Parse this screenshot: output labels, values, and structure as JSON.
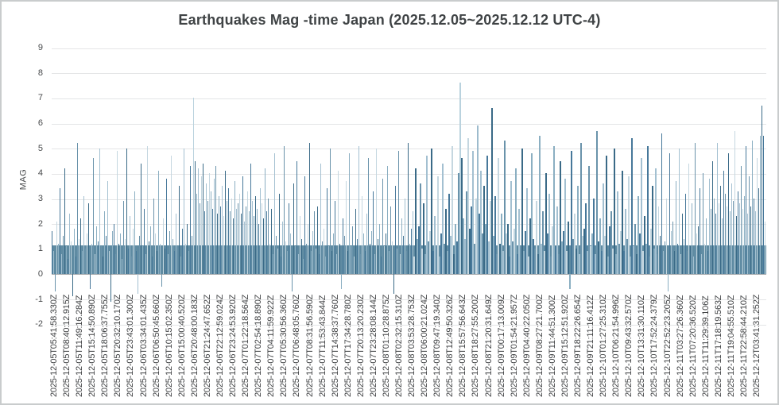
{
  "page": {
    "title": "Earthquakes Mag -time Japan (2025.12.05~2025.12.12 UTC-4)"
  },
  "colors": {
    "background": "#ffffff",
    "frame_border": "#c9cccd",
    "gridline": "#e4e5e6",
    "axis_line": "#a8abad",
    "text": "#47494b",
    "title_text": "#3f4345",
    "bar_dark": "#3a6a87",
    "bar_mid": "#47789a",
    "bar_light": "#a3c0d1",
    "base_band": "#5f8ba2"
  },
  "chart_data": {
    "type": "bar",
    "title": "Earthquakes Mag -time Japan (2025.12.05~2025.12.12 UTC-4)",
    "xlabel": "",
    "ylabel": "MAG",
    "ylim": [
      -2,
      9
    ],
    "yticks": [
      9,
      8,
      7,
      6,
      5,
      4,
      3,
      2,
      1,
      0,
      -1,
      -2
    ],
    "grid": true,
    "legend": false,
    "base_band_mag": 1.15,
    "base_band_color": "#5f8ba2",
    "bar_color_palette": [
      "#47789a",
      "#a3c0d1",
      "#6a93ab",
      "#c5d7e0",
      "#3a6a87",
      "#8bafc2"
    ],
    "bar_color_overrides": {
      "89": "#b9d2de",
      "257": "#b9d2de",
      "268": "#9dbbcd",
      "277": "#3a6a87",
      "447": "#3a6a87",
      "448": "#47789a"
    },
    "x_tick_labels": [
      "2025-12-05T05:41:58.330Z",
      "2025-12-05T08:40:12.915Z",
      "2025-12-05T11:49:16.284Z",
      "2025-12-05T15:14:50.890Z",
      "2025-12-05T18:06:37.755Z",
      "2025-12-05T20:32:10.170Z",
      "2025-12-05T23:43:01.300Z",
      "2025-12-06T03:34:01.435Z",
      "2025-12-06T06:50:45.660Z",
      "2025-12-06T10:15:02.350Z",
      "2025-12-06T15:00:40.520Z",
      "2025-12-06T20:48:00.183Z",
      "2025-12-06T21:24:47.652Z",
      "2025-12-06T22:12:59.024Z",
      "2025-12-06T23:24:53.920Z",
      "2025-12-07T01:22:18.564Z",
      "2025-12-07T02:54:18.890Z",
      "2025-12-07T04:11:59.922Z",
      "2025-12-07T05:30:56.360Z",
      "2025-12-07T06:48:05.760Z",
      "2025-12-07T08:31:56.590Z",
      "2025-12-07T11:53:43.844Z",
      "2025-12-07T14:38:37.760Z",
      "2025-12-07T17:34:28.780Z",
      "2025-12-07T20:13:20.230Z",
      "2025-12-07T23:28:08.144Z",
      "2025-12-08T01:10:28.875Z",
      "2025-12-08T02:32:15.310Z",
      "2025-12-08T03:53:28.753Z",
      "2025-12-08T06:00:21.024Z",
      "2025-12-08T09:47:19.340Z",
      "2025-12-08T12:49:50.326Z",
      "2025-12-08T15:57:56.643Z",
      "2025-12-08T18:27:55.200Z",
      "2025-12-08T21:20:31.649Z",
      "2025-12-09T00:17:13.009Z",
      "2025-12-09T01:54:21.957Z",
      "2025-12-09T04:40:22.050Z",
      "2025-12-09T08:27:21.700Z",
      "2025-12-09T11:44:51.300Z",
      "2025-12-09T15:12:51.920Z",
      "2025-12-09T18:22:26.654Z",
      "2025-12-09T21:11:16.412Z",
      "2025-12-10T01:27:25.310Z",
      "2025-12-10T06:21:54.996Z",
      "2025-12-10T09:43:32.570Z",
      "2025-12-10T13:31:30.110Z",
      "2025-12-10T17:52:24.379Z",
      "2025-12-10T22:52:23.205Z",
      "2025-12-11T03:27:26.360Z",
      "2025-12-11T07:20:36.520Z",
      "2025-12-11T11:29:39.106Z",
      "2025-12-11T17:18:19.563Z",
      "2025-12-11T19:04:55.510Z",
      "2025-12-11T22:58:44.210Z",
      "2025-12-12T03:41:31.252Z"
    ],
    "values": [
      1.7,
      0.9,
      -0.7,
      2.1,
      1.2,
      3.4,
      0.8,
      1.5,
      4.2,
      1.1,
      0.6,
      2.4,
      1.3,
      -0.9,
      1.8,
      0.7,
      5.2,
      1.4,
      2.2,
      0.9,
      3.1,
      1.0,
      1.6,
      2.8,
      -0.6,
      1.2,
      4.6,
      0.8,
      1.9,
      1.3,
      5.0,
      1.1,
      0.7,
      2.5,
      1.5,
      3.7,
      0.9,
      -1.1,
      1.7,
      2.0,
      0.8,
      4.9,
      1.2,
      1.6,
      0.6,
      2.9,
      1.4,
      5.0,
      1.0,
      2.3,
      0.7,
      1.8,
      3.3,
      0.9,
      -0.8,
      1.5,
      4.4,
      1.1,
      2.6,
      0.8,
      5.1,
      1.3,
      1.9,
      0.7,
      3.0,
      1.6,
      0.9,
      4.1,
      1.2,
      -0.5,
      2.2,
      1.0,
      3.8,
      0.8,
      1.7,
      4.7,
      1.4,
      0.9,
      2.4,
      1.1,
      3.5,
      0.7,
      1.8,
      5.0,
      1.2,
      2.0,
      0.9,
      4.3,
      1.5,
      7.0,
      4.5,
      3.2,
      4.2,
      2.8,
      3.9,
      4.4,
      2.5,
      3.6,
      2.9,
      4.0,
      3.3,
      2.6,
      3.8,
      4.3,
      2.4,
      3.1,
      2.7,
      3.5,
      2.3,
      4.1,
      2.9,
      3.4,
      2.5,
      3.0,
      2.2,
      3.7,
      2.6,
      2.8,
      3.2,
      2.4,
      3.9,
      2.1,
      2.7,
      3.3,
      2.5,
      4.4,
      2.9,
      2.3,
      3.1,
      2.6,
      2.0,
      3.4,
      2.8,
      2.2,
      4.2,
      2.5,
      3.0,
      1.2,
      2.6,
      0.8,
      4.8,
      1.5,
      1.0,
      3.2,
      0.7,
      2.1,
      5.1,
      1.3,
      0.9,
      2.8,
      1.6,
      -0.7,
      3.6,
      1.1,
      4.5,
      0.8,
      2.3,
      1.4,
      0.6,
      3.9,
      1.2,
      2.0,
      5.2,
      0.9,
      1.7,
      2.5,
      1.0,
      2.7,
      0.8,
      4.4,
      1.3,
      1.8,
      0.7,
      3.4,
      1.1,
      5.0,
      0.9,
      1.6,
      2.9,
      0.8,
      4.1,
      1.2,
      -0.6,
      2.2,
      1.5,
      3.7,
      0.9,
      4.8,
      1.1,
      1.9,
      0.7,
      2.6,
      1.4,
      5.1,
      0.8,
      3.1,
      1.6,
      0.9,
      2.4,
      4.6,
      1.2,
      1.7,
      3.3,
      0.8,
      5.0,
      1.4,
      2.0,
      0.7,
      3.8,
      1.1,
      1.6,
      4.3,
      0.9,
      2.7,
      1.3,
      -0.8,
      3.5,
      1.0,
      4.9,
      0.8,
      2.2,
      1.5,
      3.0,
      0.9,
      5.2,
      1.2,
      1.8,
      2.5,
      0.7,
      4.2,
      1.4,
      1.9,
      3.6,
      1.0,
      2.8,
      0.8,
      4.7,
      1.3,
      1.7,
      5.0,
      0.9,
      2.3,
      1.1,
      3.9,
      0.7,
      1.6,
      4.4,
      1.2,
      2.6,
      0.9,
      3.2,
      1.5,
      5.1,
      0.8,
      2.0,
      1.3,
      4.0,
      7.6,
      4.6,
      2.2,
      1.4,
      3.3,
      5.4,
      1.8,
      2.7,
      4.9,
      1.2,
      3.0,
      5.9,
      2.4,
      4.1,
      1.6,
      3.5,
      2.0,
      4.7,
      1.3,
      2.9,
      6.6,
      1.5,
      3.1,
      0.8,
      4.6,
      1.2,
      2.4,
      0.9,
      5.3,
      1.6,
      2.0,
      0.7,
      3.7,
      1.3,
      1.8,
      4.2,
      0.8,
      2.6,
      1.1,
      5.0,
      0.9,
      1.7,
      3.4,
      0.7,
      2.2,
      4.8,
      1.4,
      1.0,
      2.9,
      0.8,
      5.5,
      1.2,
      2.5,
      0.9,
      4.0,
      1.6,
      3.2,
      0.7,
      1.9,
      5.1,
      1.1,
      2.7,
      0.8,
      4.5,
      1.3,
      1.7,
      3.8,
      0.9,
      2.1,
      -0.6,
      4.9,
      1.4,
      2.4,
      1.0,
      3.5,
      0.8,
      5.2,
      1.5,
      1.8,
      2.8,
      0.9,
      4.3,
      1.1,
      1.6,
      3.0,
      0.8,
      5.7,
      1.3,
      2.2,
      0.9,
      3.6,
      1.5,
      4.7,
      0.7,
      1.9,
      2.5,
      1.0,
      5.0,
      0.8,
      3.3,
      1.2,
      1.7,
      4.1,
      0.9,
      2.6,
      1.4,
      3.9,
      0.7,
      5.4,
      1.1,
      2.0,
      0.8,
      3.1,
      1.6,
      4.6,
      0.9,
      2.3,
      1.2,
      5.1,
      0.7,
      1.8,
      3.5,
      1.0,
      4.2,
      0.8,
      2.7,
      1.5,
      5.6,
      0.9,
      1.3,
      3.0,
      -0.7,
      4.8,
      1.7,
      2.1,
      0.9,
      3.7,
      1.2,
      5.0,
      0.8,
      2.4,
      1.4,
      3.2,
      0.9,
      4.4,
      1.1,
      2.8,
      0.7,
      5.2,
      1.6,
      1.9,
      3.4,
      0.8,
      4.0,
      1.2,
      2.2,
      0.9,
      3.8,
      2.6,
      4.5,
      3.0,
      2.4,
      5.2,
      2.8,
      3.5,
      2.2,
      4.1,
      3.2,
      2.7,
      4.8,
      2.5,
      3.6,
      2.9,
      5.7,
      2.3,
      3.3,
      2.8,
      4.3,
      2.6,
      3.1,
      5.1,
      2.4,
      3.9,
      2.7,
      5.3,
      3.0,
      2.5,
      4.6,
      3.4,
      5.5,
      6.7,
      5.5,
      2.1
    ]
  }
}
